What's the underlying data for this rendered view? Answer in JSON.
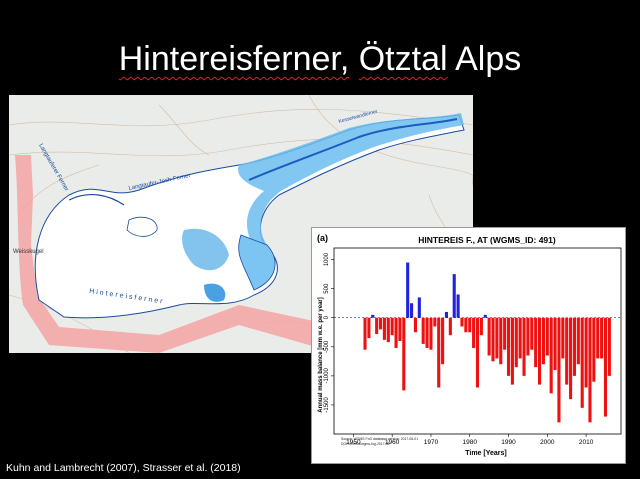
{
  "slide": {
    "title_part1": "Hintereisferner,",
    "title_part2": "Ötztal",
    "title_part3": "Alps",
    "citation": "Kuhn and Lambrecht (2007), Strasser et al. (2018)"
  },
  "map": {
    "labels": {
      "glacier_name": "Hintereisferner",
      "joch_ferner": "Langtaufer-Joch-Ferner",
      "langtaufer": "Langtauferer Ferner",
      "weisskugel": "Weisskugel",
      "kesselwand": "Kesselwandferner"
    },
    "colors": {
      "glacier_fill": "#5ab0e8",
      "glacier_outline": "#1a4aa0",
      "border_band": "#f4a0a0",
      "terrain": "#e8ebe8"
    }
  },
  "chart_data": {
    "type": "bar",
    "panel_label": "(a)",
    "title": "HINTEREIS F., AT (WGMS_ID: 491)",
    "xlabel": "Time [Years]",
    "ylabel": "Annual mass balance [mm w.e. per year]",
    "xlim": [
      1945,
      2019
    ],
    "ylim": [
      -2000,
      1200
    ],
    "xticks": [
      1950,
      1960,
      1970,
      1980,
      1990,
      2000,
      2010
    ],
    "yticks": [
      1000,
      500,
      0,
      -500,
      -1000,
      -1500
    ],
    "source_note": "Source: WGMS FoG database version: 2017-06-01",
    "doi_note": "DOI:10.5904/wgms-fog-2017-06",
    "colors": {
      "positive": "#2222dd",
      "negative": "#ee1111"
    },
    "years": [
      1953,
      1954,
      1955,
      1956,
      1957,
      1958,
      1959,
      1960,
      1961,
      1962,
      1963,
      1964,
      1965,
      1966,
      1967,
      1968,
      1969,
      1970,
      1971,
      1972,
      1973,
      1974,
      1975,
      1976,
      1977,
      1978,
      1979,
      1980,
      1981,
      1982,
      1983,
      1984,
      1985,
      1986,
      1987,
      1988,
      1989,
      1990,
      1991,
      1992,
      1993,
      1994,
      1995,
      1996,
      1997,
      1998,
      1999,
      2000,
      2001,
      2002,
      2003,
      2004,
      2005,
      2006,
      2007,
      2008,
      2009,
      2010,
      2011,
      2012,
      2013,
      2014,
      2015,
      2016
    ],
    "values": [
      -550,
      -350,
      50,
      -280,
      -200,
      -380,
      -420,
      -300,
      -520,
      -400,
      -1250,
      950,
      250,
      -250,
      350,
      -450,
      -520,
      -550,
      -150,
      -1200,
      -800,
      100,
      -300,
      750,
      400,
      -150,
      -250,
      -250,
      -520,
      -1200,
      -300,
      50,
      -650,
      -750,
      -700,
      -800,
      -550,
      -1000,
      -1150,
      -850,
      -700,
      -1000,
      -650,
      -550,
      -850,
      -1150,
      -800,
      -650,
      -1300,
      -900,
      -1800,
      -700,
      -1150,
      -1400,
      -1000,
      -800,
      -1550,
      -1200,
      -1800,
      -1100,
      -700,
      -700,
      -1700,
      -1000
    ]
  }
}
